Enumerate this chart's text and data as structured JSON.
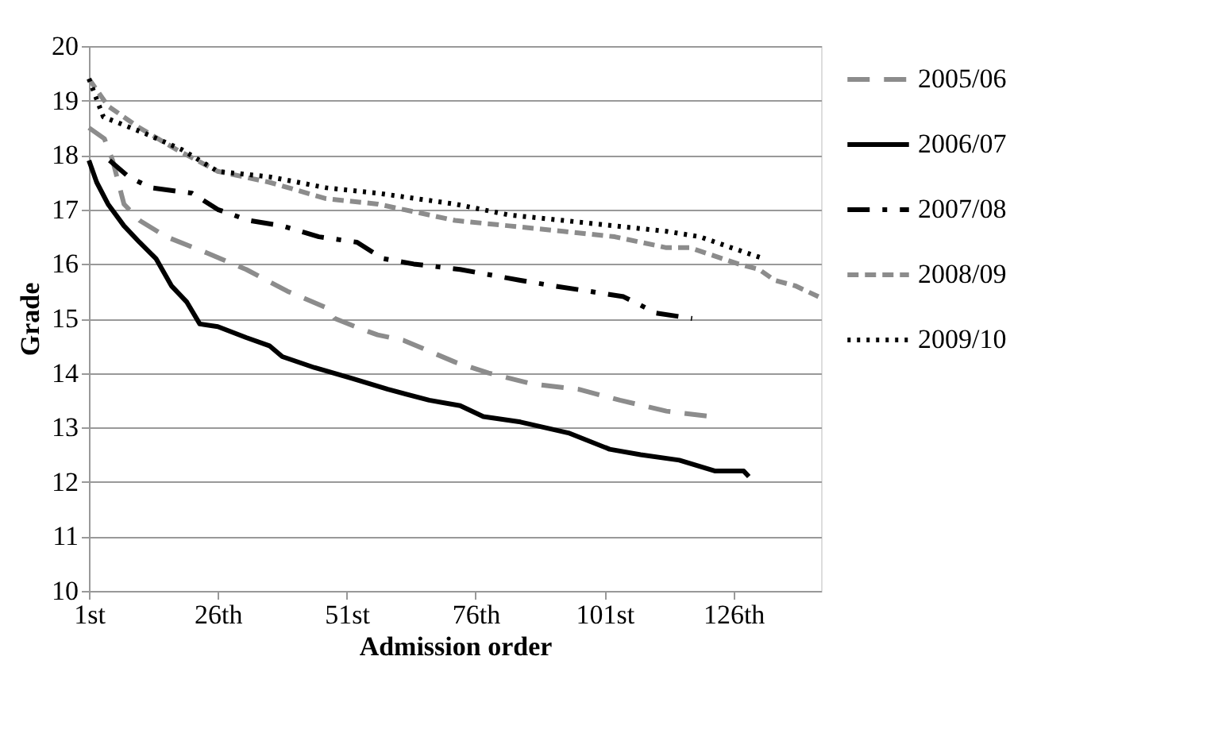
{
  "chart_data": {
    "type": "line",
    "xlabel": "Admission order",
    "ylabel": "Grade",
    "xlim": [
      1,
      143
    ],
    "xticks": [
      {
        "value": 1,
        "label": "1st"
      },
      {
        "value": 26,
        "label": "26th"
      },
      {
        "value": 51,
        "label": "51st"
      },
      {
        "value": 76,
        "label": "76th"
      },
      {
        "value": 101,
        "label": "101st"
      },
      {
        "value": 126,
        "label": "126th"
      }
    ],
    "ylim": [
      10,
      20
    ],
    "yticks": [
      10,
      11,
      12,
      13,
      14,
      15,
      16,
      17,
      18,
      19,
      20
    ],
    "grid": "y",
    "legend": "right",
    "marker": "none",
    "series": [
      {
        "name": "2005/06",
        "color": "#8c8c8c",
        "line_style": "longdash",
        "x": [
          1,
          4,
          5.6,
          7.8,
          10.8,
          16,
          24,
          31.5,
          39.5,
          47,
          48.7,
          54,
          57,
          62,
          72,
          78.5,
          87,
          96,
          104,
          113,
          121.6
        ],
        "values": [
          18.5,
          18.3,
          17.9,
          17.1,
          16.8,
          16.5,
          16.2,
          15.9,
          15.5,
          15.2,
          15.0,
          14.8,
          14.7,
          14.6,
          14.2,
          14.0,
          13.8,
          13.7,
          13.5,
          13.3,
          13.2
        ]
      },
      {
        "name": "2006/07",
        "color": "#000000",
        "line_style": "solid",
        "x": [
          1,
          2.5,
          4.7,
          7.8,
          10.8,
          14,
          17,
          20,
          22.5,
          26,
          31.5,
          36,
          38.5,
          44.7,
          52,
          59,
          67,
          73,
          77.5,
          84.7,
          94,
          102,
          108,
          115.5,
          122.5,
          128,
          129
        ],
        "values": [
          17.9,
          17.5,
          17.1,
          16.7,
          16.4,
          16.1,
          15.6,
          15.3,
          14.9,
          14.85,
          14.65,
          14.5,
          14.3,
          14.1,
          13.9,
          13.7,
          13.5,
          13.4,
          13.2,
          13.1,
          12.9,
          12.6,
          12.5,
          12.4,
          12.2,
          12.2,
          12.1
        ]
      },
      {
        "name": "2007/08",
        "color": "#000000",
        "line_style": "dashdot",
        "x": [
          5,
          8.7,
          13,
          21,
          26,
          32,
          38.5,
          45.6,
          53,
          58,
          64,
          73,
          84.7,
          91,
          98,
          104.7,
          111,
          118
        ],
        "values": [
          17.9,
          17.6,
          17.4,
          17.3,
          17.0,
          16.8,
          16.7,
          16.5,
          16.4,
          16.1,
          16.0,
          15.9,
          15.7,
          15.6,
          15.5,
          15.4,
          15.1,
          15.0
        ]
      },
      {
        "name": "2008/09",
        "color": "#8c8c8c",
        "line_style": "dashed",
        "x": [
          1,
          4.7,
          10.8,
          18,
          26,
          36,
          47,
          57,
          72,
          82.5,
          93,
          103,
          113,
          117.6,
          120.7,
          127,
          131,
          134,
          138,
          142.5
        ],
        "values": [
          19.4,
          18.9,
          18.5,
          18.1,
          17.7,
          17.5,
          17.2,
          17.1,
          16.8,
          16.7,
          16.6,
          16.5,
          16.3,
          16.3,
          16.2,
          16.0,
          15.9,
          15.7,
          15.6,
          15.4
        ]
      },
      {
        "name": "2009/10",
        "color": "#000000",
        "line_style": "dotted",
        "x": [
          1,
          3.8,
          11.8,
          19,
          26,
          36,
          47,
          57,
          72,
          82.5,
          93,
          103,
          113,
          119.5,
          125.6,
          131.8
        ],
        "values": [
          19.4,
          18.7,
          18.4,
          18.1,
          17.7,
          17.6,
          17.4,
          17.3,
          17.1,
          16.9,
          16.8,
          16.7,
          16.6,
          16.5,
          16.3,
          16.1
        ]
      }
    ]
  }
}
